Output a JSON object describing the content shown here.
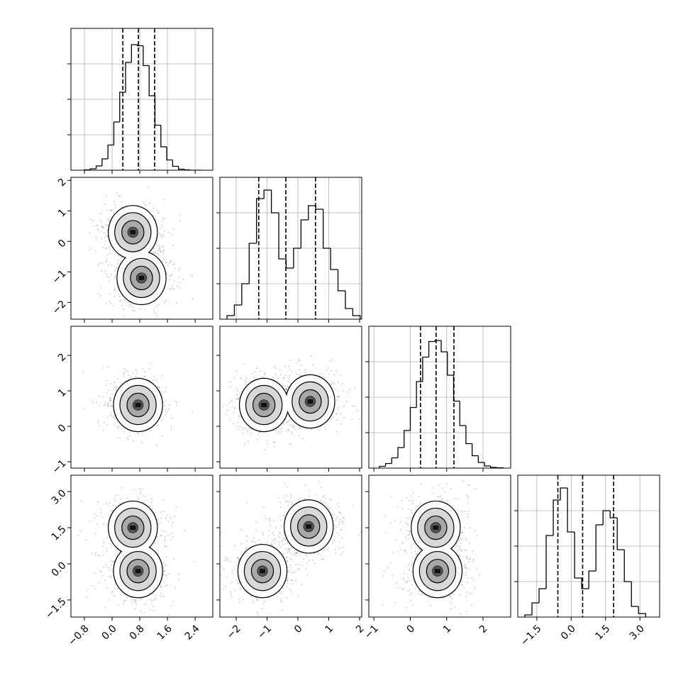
{
  "chart_data": [
    {
      "type": "histogram",
      "xlim": [
        -1.19,
        2.91
      ],
      "xticks": [
        -0.8,
        0,
        0.8,
        1.6,
        2.4
      ],
      "ylim": [
        0,
        4
      ],
      "yticks": [
        1,
        2,
        3
      ],
      "grid": true,
      "bins": [
        -0.8,
        -0.63,
        -0.46,
        -0.29,
        -0.12,
        0.05,
        0.22,
        0.39,
        0.56,
        0.73,
        0.9,
        1.07,
        1.24,
        1.41,
        1.58,
        1.75,
        1.92,
        2.09,
        2.26,
        2.43,
        2.6
      ],
      "counts": [
        0.01,
        0.04,
        0.12,
        0.32,
        0.71,
        1.36,
        2.2,
        3.04,
        3.54,
        3.51,
        2.95,
        2.1,
        1.27,
        0.66,
        0.29,
        0.11,
        0.03,
        0.01,
        0,
        0
      ],
      "quantiles": [
        0.31,
        0.76,
        1.23
      ]
    },
    {
      "type": "density",
      "xlim": [
        -1.19,
        2.91
      ],
      "xticks": [
        -0.8,
        0,
        0.8,
        1.6,
        2.4
      ],
      "ylim": [
        -2.55,
        2.1
      ],
      "yticks": [
        {
          "value": -2,
          "label": "−2"
        },
        {
          "value": -1,
          "label": "−1"
        },
        0,
        1,
        2
      ],
      "modes": {
        "x": [
          0.6,
          0.85
        ],
        "y": [
          0.3,
          -1.2
        ]
      }
    },
    {
      "type": "histogram",
      "xlim": [
        -2.53,
        2.07
      ],
      "xticks": [
        -2,
        -1,
        0,
        1,
        2
      ],
      "ylim": [
        0,
        4
      ],
      "yticks": [
        1,
        2,
        3
      ],
      "grid": true,
      "bins": [
        -2.3,
        -2.06,
        -1.82,
        -1.58,
        -1.34,
        -1.1,
        -0.86,
        -0.62,
        -0.38,
        -0.14,
        0.1,
        0.34,
        0.58,
        0.82,
        1.06,
        1.3,
        1.54,
        1.78,
        2.02
      ],
      "counts": [
        0.1,
        0.4,
        1.0,
        2.14,
        3.4,
        3.64,
        3.0,
        1.7,
        1.44,
        2.0,
        2.8,
        3.2,
        3.1,
        2.0,
        1.4,
        0.8,
        0.3,
        0.1
      ],
      "quantiles": [
        -1.27,
        -0.39,
        0.57
      ]
    },
    {
      "type": "density",
      "xlim": [
        -1.19,
        2.91
      ],
      "xticks": [
        -0.8,
        0,
        0.8,
        1.6,
        2.4
      ],
      "ylim": [
        -1.18,
        2.82
      ],
      "yticks": [
        {
          "value": -1,
          "label": "−1"
        },
        0,
        1,
        2
      ],
      "modes": {
        "x": [
          0.75
        ],
        "y": [
          0.6
        ]
      }
    },
    {
      "type": "density",
      "xlim": [
        -2.53,
        2.07
      ],
      "xticks": [
        -2,
        -1,
        0,
        1,
        2
      ],
      "ylim": [
        -1.18,
        2.82
      ],
      "yticks": [
        -1,
        0,
        1,
        2
      ],
      "modes": {
        "x": [
          -1.1,
          0.4
        ],
        "y": [
          0.6,
          0.7
        ]
      }
    },
    {
      "type": "histogram",
      "xlim": [
        -1.14,
        2.76
      ],
      "xticks": [
        -1,
        0,
        1,
        2
      ],
      "ylim": [
        0,
        4
      ],
      "yticks": [
        1,
        2,
        3
      ],
      "grid": true,
      "bins": [
        -0.85,
        -0.68,
        -0.51,
        -0.34,
        -0.17,
        0,
        0.17,
        0.34,
        0.51,
        0.68,
        0.85,
        1.02,
        1.19,
        1.36,
        1.53,
        1.7,
        1.87,
        2.04,
        2.21,
        2.38,
        2.55
      ],
      "counts": [
        0.05,
        0.13,
        0.29,
        0.58,
        1.06,
        1.71,
        2.44,
        3.13,
        3.57,
        3.6,
        3.28,
        2.62,
        1.89,
        1.2,
        0.69,
        0.35,
        0.16,
        0.06,
        0.02,
        0.01
      ],
      "quantiles": [
        0.28,
        0.71,
        1.2
      ]
    },
    {
      "type": "density",
      "xlim": [
        -1.19,
        2.91
      ],
      "xticks": [
        {
          "value": -0.8,
          "label": "−0.8"
        },
        {
          "value": 0,
          "label": "0.0"
        },
        0.8,
        1.6,
        2.4
      ],
      "ylim": [
        -2.21,
        3.68
      ],
      "yticks": [
        {
          "value": -1.5,
          "label": "−1.5"
        },
        {
          "value": 0,
          "label": "0.0"
        },
        1.5,
        {
          "value": 3,
          "label": "3.0"
        }
      ],
      "modes": {
        "x": [
          0.6,
          0.75
        ],
        "y": [
          1.5,
          -0.3
        ]
      }
    },
    {
      "type": "density",
      "xlim": [
        -2.53,
        2.07
      ],
      "xticks": [
        {
          "value": -2,
          "label": "−2"
        },
        {
          "value": -1,
          "label": "−1"
        },
        0,
        1,
        2
      ],
      "ylim": [
        -2.21,
        3.68
      ],
      "yticks": [
        -1.5,
        0,
        1.5,
        3
      ],
      "modes": {
        "x": [
          -1.15,
          0.35
        ],
        "y": [
          -0.3,
          1.55
        ]
      }
    },
    {
      "type": "density",
      "xlim": [
        -1.14,
        2.76
      ],
      "xticks": [
        {
          "value": -1,
          "label": "−1"
        },
        0,
        1,
        2
      ],
      "ylim": [
        -2.21,
        3.68
      ],
      "yticks": [
        -1.5,
        0,
        1.5,
        3
      ],
      "modes": {
        "x": [
          0.7,
          0.75
        ],
        "y": [
          1.5,
          -0.3
        ]
      }
    },
    {
      "type": "histogram",
      "xlim": [
        -2.33,
        3.86
      ],
      "xticks": [
        {
          "value": -1.5,
          "label": "−1.5"
        },
        {
          "value": 0,
          "label": "0.0"
        },
        1.5,
        {
          "value": 3,
          "label": "3.0"
        }
      ],
      "ylim": [
        0,
        4
      ],
      "yticks": [
        1,
        2,
        3
      ],
      "grid": true,
      "bins": [
        -2.02,
        -1.71,
        -1.4,
        -1.09,
        -0.78,
        -0.47,
        -0.16,
        0.15,
        0.46,
        0.77,
        1.08,
        1.39,
        1.7,
        2.01,
        2.32,
        2.63,
        2.94,
        3.25
      ],
      "counts": [
        0.06,
        0.4,
        0.8,
        2.3,
        3.3,
        3.64,
        2.4,
        1.1,
        0.8,
        1.3,
        2.6,
        3.0,
        2.8,
        1.9,
        1.0,
        0.3,
        0.1
      ],
      "quantiles": [
        -0.58,
        0.5,
        1.85
      ]
    }
  ]
}
